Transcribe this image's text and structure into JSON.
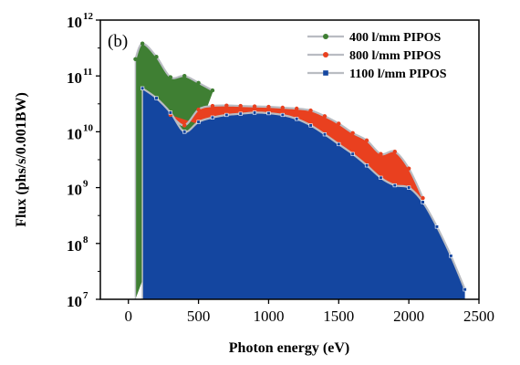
{
  "chart_data": {
    "type": "area",
    "panel_label": "(b)",
    "xlabel": "Photon energy (eV)",
    "ylabel": "Flux (phs/s/0.001BW)",
    "xlim": [
      -200,
      2500
    ],
    "ylim": [
      10000000,
      1000000000000
    ],
    "yscale": "log",
    "x_ticks": [
      "0",
      "500",
      "1000",
      "1500",
      "2000",
      "2500"
    ],
    "x_tick_values": [
      0,
      500,
      1000,
      1500,
      2000,
      2500
    ],
    "y_ticks": [
      {
        "base": "10",
        "exp": "7",
        "value": 10000000
      },
      {
        "base": "10",
        "exp": "8",
        "value": 100000000
      },
      {
        "base": "10",
        "exp": "9",
        "value": 1000000000
      },
      {
        "base": "10",
        "exp": "10",
        "value": 10000000000
      },
      {
        "base": "10",
        "exp": "11",
        "value": 100000000000
      },
      {
        "base": "10",
        "exp": "12",
        "value": 1000000000000
      }
    ],
    "legend_position": "top-right",
    "series": [
      {
        "name": "400 l/mm PIPOS",
        "color": "#3f7f33",
        "marker": "circle",
        "x": [
          50,
          100,
          200,
          300,
          400,
          500,
          600
        ],
        "y": [
          200000000000,
          380000000000,
          220000000000,
          95000000000,
          100000000000,
          75000000000,
          55000000000
        ],
        "drop_start": 10000000,
        "drop_end": 50000000000
      },
      {
        "name": "800 l/mm PIPOS",
        "color": "#e9401f",
        "marker": "circle",
        "x": [
          300,
          400,
          500,
          600,
          700,
          800,
          900,
          1000,
          1100,
          1200,
          1300,
          1400,
          1500,
          1600,
          1700,
          1800,
          1900,
          2000,
          2100
        ],
        "y": [
          20000000000,
          13000000000,
          25000000000,
          29000000000,
          29500000000,
          29000000000,
          28500000000,
          28000000000,
          27000000000,
          26000000000,
          24000000000,
          19000000000,
          14000000000,
          9500000000,
          7000000000,
          4000000000,
          4400000000,
          2200000000,
          650000000
        ]
      },
      {
        "name": "1100 l/mm PIPOS",
        "color": "#1446a0",
        "marker": "square",
        "x": [
          100,
          200,
          300,
          400,
          500,
          600,
          700,
          800,
          900,
          1000,
          1100,
          1200,
          1300,
          1400,
          1500,
          1600,
          1700,
          1800,
          1900,
          2000,
          2100,
          2200,
          2300,
          2400
        ],
        "y": [
          60000000000,
          40000000000,
          22000000000,
          10000000000,
          15000000000,
          18000000000,
          20000000000,
          21000000000,
          22000000000,
          21500000000,
          20000000000,
          17000000000,
          13000000000,
          9000000000,
          6000000000,
          4000000000,
          2500000000,
          1500000000,
          1100000000,
          1000000000,
          550000000,
          200000000,
          60000000,
          15000000
        ],
        "drop_start": 10000000
      }
    ]
  }
}
